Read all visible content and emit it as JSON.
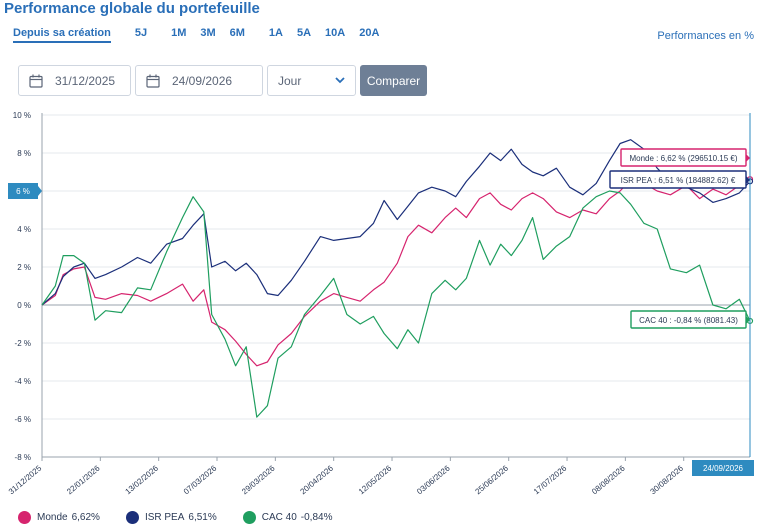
{
  "header": {
    "title": "Performance globale du portefeuille",
    "periods": [
      "Depuis sa création",
      "5J",
      "1M",
      "3M",
      "6M",
      "1A",
      "5A",
      "10A",
      "20A"
    ],
    "active_period": "Depuis sa création",
    "unit_label": "Performances en %"
  },
  "filters": {
    "start_date": "31/12/2025",
    "end_date": "24/09/2026",
    "granularity": "Jour",
    "compare_label": "Comparer"
  },
  "colors": {
    "monde": "#d6246e",
    "isr": "#1b2f7a",
    "cac": "#1f9e5f",
    "accent": "#2e8bc0"
  },
  "chart_data": {
    "type": "line",
    "ylim": [
      -8,
      10
    ],
    "y_ticks": [
      "10 %",
      "8 %",
      "6 %",
      "4 %",
      "2 %",
      "0 %",
      "-2 %",
      "-4 %",
      "-6 %",
      "-8 %"
    ],
    "x_ticks": [
      "31/12/2025",
      "22/01/2026",
      "13/02/2026",
      "07/03/2026",
      "29/03/2026",
      "20/04/2026",
      "12/05/2026",
      "03/06/2026",
      "25/06/2026",
      "17/07/2026",
      "08/08/2026",
      "30/08/2026"
    ],
    "x_marker_label": "24/09/2026",
    "y_marker_label": "6 %",
    "x_range": [
      "31/12/2025",
      "24/09/2026"
    ],
    "series": [
      {
        "name": "Monde",
        "key": "monde",
        "legend_value": "6,62%",
        "tooltip": "Monde : 6,62 % (296510.15 €)",
        "points": [
          [
            "31/12/2025",
            0
          ],
          [
            "05/01/2026",
            0.5
          ],
          [
            "08/01/2026",
            1.6
          ],
          [
            "12/01/2026",
            1.9
          ],
          [
            "16/01/2026",
            2.0
          ],
          [
            "20/01/2026",
            0.4
          ],
          [
            "24/01/2026",
            0.3
          ],
          [
            "30/01/2026",
            0.6
          ],
          [
            "05/02/2026",
            0.5
          ],
          [
            "10/02/2026",
            0.2
          ],
          [
            "16/02/2026",
            0.6
          ],
          [
            "22/02/2026",
            1.1
          ],
          [
            "26/02/2026",
            0.2
          ],
          [
            "02/03/2026",
            0.8
          ],
          [
            "05/03/2026",
            -0.9
          ],
          [
            "10/03/2026",
            -1.3
          ],
          [
            "14/03/2026",
            -1.9
          ],
          [
            "18/03/2026",
            -2.6
          ],
          [
            "22/03/2026",
            -3.2
          ],
          [
            "26/03/2026",
            -3.0
          ],
          [
            "30/03/2026",
            -2.1
          ],
          [
            "04/04/2026",
            -1.5
          ],
          [
            "09/04/2026",
            -0.6
          ],
          [
            "15/04/2026",
            0.2
          ],
          [
            "20/04/2026",
            0.6
          ],
          [
            "25/04/2026",
            0.4
          ],
          [
            "30/04/2026",
            0.2
          ],
          [
            "05/05/2026",
            0.8
          ],
          [
            "09/05/2026",
            1.2
          ],
          [
            "14/05/2026",
            2.2
          ],
          [
            "18/05/2026",
            3.6
          ],
          [
            "22/05/2026",
            4.2
          ],
          [
            "27/05/2026",
            3.8
          ],
          [
            "01/06/2026",
            4.6
          ],
          [
            "05/06/2026",
            5.1
          ],
          [
            "09/06/2026",
            4.6
          ],
          [
            "14/06/2026",
            5.6
          ],
          [
            "18/06/2026",
            5.9
          ],
          [
            "22/06/2026",
            5.3
          ],
          [
            "26/06/2026",
            5.0
          ],
          [
            "30/06/2026",
            5.6
          ],
          [
            "04/07/2026",
            5.9
          ],
          [
            "08/07/2026",
            5.6
          ],
          [
            "13/07/2026",
            4.9
          ],
          [
            "18/07/2026",
            4.6
          ],
          [
            "23/07/2026",
            5.0
          ],
          [
            "28/07/2026",
            4.8
          ],
          [
            "02/08/2026",
            5.6
          ],
          [
            "06/08/2026",
            6.0
          ],
          [
            "10/08/2026",
            6.6
          ],
          [
            "15/08/2026",
            6.4
          ],
          [
            "20/08/2026",
            6.0
          ],
          [
            "25/08/2026",
            5.8
          ],
          [
            "31/08/2026",
            6.3
          ],
          [
            "05/09/2026",
            5.6
          ],
          [
            "10/09/2026",
            6.1
          ],
          [
            "15/09/2026",
            5.8
          ],
          [
            "20/09/2026",
            6.3
          ],
          [
            "24/09/2026",
            6.62
          ]
        ]
      },
      {
        "name": "ISR PEA",
        "key": "isr",
        "legend_value": "6,51%",
        "tooltip": "ISR PEA : 6,51 % (184882.62) €",
        "points": [
          [
            "31/12/2025",
            0
          ],
          [
            "05/01/2026",
            0.6
          ],
          [
            "08/01/2026",
            1.5
          ],
          [
            "12/01/2026",
            2.0
          ],
          [
            "16/01/2026",
            2.2
          ],
          [
            "20/01/2026",
            1.4
          ],
          [
            "24/01/2026",
            1.6
          ],
          [
            "30/01/2026",
            2.0
          ],
          [
            "05/02/2026",
            2.5
          ],
          [
            "10/02/2026",
            2.2
          ],
          [
            "16/02/2026",
            3.2
          ],
          [
            "22/02/2026",
            3.5
          ],
          [
            "26/02/2026",
            4.2
          ],
          [
            "02/03/2026",
            4.8
          ],
          [
            "05/03/2026",
            2.0
          ],
          [
            "10/03/2026",
            2.3
          ],
          [
            "14/03/2026",
            1.8
          ],
          [
            "18/03/2026",
            2.2
          ],
          [
            "22/03/2026",
            1.6
          ],
          [
            "26/03/2026",
            0.6
          ],
          [
            "30/03/2026",
            0.5
          ],
          [
            "04/04/2026",
            1.3
          ],
          [
            "09/04/2026",
            2.3
          ],
          [
            "15/04/2026",
            3.6
          ],
          [
            "20/04/2026",
            3.4
          ],
          [
            "25/04/2026",
            3.5
          ],
          [
            "30/04/2026",
            3.6
          ],
          [
            "05/05/2026",
            4.3
          ],
          [
            "09/05/2026",
            5.5
          ],
          [
            "14/05/2026",
            4.5
          ],
          [
            "18/05/2026",
            5.2
          ],
          [
            "22/05/2026",
            5.9
          ],
          [
            "27/05/2026",
            6.2
          ],
          [
            "01/06/2026",
            6.0
          ],
          [
            "05/06/2026",
            5.7
          ],
          [
            "09/06/2026",
            6.5
          ],
          [
            "14/06/2026",
            7.3
          ],
          [
            "18/06/2026",
            8.0
          ],
          [
            "22/06/2026",
            7.6
          ],
          [
            "26/06/2026",
            8.2
          ],
          [
            "30/06/2026",
            7.4
          ],
          [
            "04/07/2026",
            7.0
          ],
          [
            "08/07/2026",
            6.8
          ],
          [
            "13/07/2026",
            7.2
          ],
          [
            "18/07/2026",
            6.2
          ],
          [
            "23/07/2026",
            5.8
          ],
          [
            "28/07/2026",
            6.4
          ],
          [
            "02/08/2026",
            7.6
          ],
          [
            "06/08/2026",
            8.5
          ],
          [
            "10/08/2026",
            8.7
          ],
          [
            "15/08/2026",
            8.2
          ],
          [
            "20/08/2026",
            7.2
          ],
          [
            "25/08/2026",
            6.5
          ],
          [
            "31/08/2026",
            6.2
          ],
          [
            "05/09/2026",
            5.9
          ],
          [
            "10/09/2026",
            5.4
          ],
          [
            "15/09/2026",
            5.6
          ],
          [
            "20/09/2026",
            5.9
          ],
          [
            "24/09/2026",
            6.51
          ]
        ]
      },
      {
        "name": "CAC 40",
        "key": "cac",
        "legend_value": "-0,84%",
        "tooltip": "CAC 40 : -0,84 % (8081.43)",
        "points": [
          [
            "31/12/2025",
            0
          ],
          [
            "05/01/2026",
            1.0
          ],
          [
            "08/01/2026",
            2.6
          ],
          [
            "12/01/2026",
            2.6
          ],
          [
            "16/01/2026",
            2.2
          ],
          [
            "20/01/2026",
            -0.8
          ],
          [
            "24/01/2026",
            -0.3
          ],
          [
            "30/01/2026",
            -0.4
          ],
          [
            "05/02/2026",
            0.9
          ],
          [
            "10/02/2026",
            0.8
          ],
          [
            "16/02/2026",
            2.8
          ],
          [
            "22/02/2026",
            4.6
          ],
          [
            "26/02/2026",
            5.7
          ],
          [
            "02/03/2026",
            4.9
          ],
          [
            "05/03/2026",
            -0.5
          ],
          [
            "10/03/2026",
            -1.8
          ],
          [
            "14/03/2026",
            -3.2
          ],
          [
            "18/03/2026",
            -2.2
          ],
          [
            "22/03/2026",
            -5.9
          ],
          [
            "26/03/2026",
            -5.3
          ],
          [
            "30/03/2026",
            -2.8
          ],
          [
            "04/04/2026",
            -2.2
          ],
          [
            "09/04/2026",
            -0.5
          ],
          [
            "15/04/2026",
            0.5
          ],
          [
            "20/04/2026",
            1.4
          ],
          [
            "25/04/2026",
            -0.5
          ],
          [
            "30/04/2026",
            -1.0
          ],
          [
            "05/05/2026",
            -0.6
          ],
          [
            "09/05/2026",
            -1.5
          ],
          [
            "14/05/2026",
            -2.3
          ],
          [
            "18/05/2026",
            -1.3
          ],
          [
            "22/05/2026",
            -2.0
          ],
          [
            "27/05/2026",
            0.6
          ],
          [
            "01/06/2026",
            1.3
          ],
          [
            "05/06/2026",
            0.8
          ],
          [
            "09/06/2026",
            1.4
          ],
          [
            "14/06/2026",
            3.4
          ],
          [
            "18/06/2026",
            2.1
          ],
          [
            "22/06/2026",
            3.2
          ],
          [
            "26/06/2026",
            2.6
          ],
          [
            "30/06/2026",
            3.4
          ],
          [
            "04/07/2026",
            4.6
          ],
          [
            "08/07/2026",
            2.4
          ],
          [
            "13/07/2026",
            3.1
          ],
          [
            "18/07/2026",
            3.6
          ],
          [
            "23/07/2026",
            5.1
          ],
          [
            "28/07/2026",
            5.7
          ],
          [
            "02/08/2026",
            6.0
          ],
          [
            "06/08/2026",
            5.9
          ],
          [
            "10/08/2026",
            5.3
          ],
          [
            "15/08/2026",
            4.3
          ],
          [
            "20/08/2026",
            4.0
          ],
          [
            "25/08/2026",
            1.9
          ],
          [
            "31/08/2026",
            1.7
          ],
          [
            "05/09/2026",
            2.1
          ],
          [
            "10/09/2026",
            0.0
          ],
          [
            "15/09/2026",
            -0.2
          ],
          [
            "20/09/2026",
            0.3
          ],
          [
            "24/09/2026",
            -0.84
          ]
        ]
      }
    ],
    "legend_position": "bottom-left",
    "grid": "horizontal"
  }
}
